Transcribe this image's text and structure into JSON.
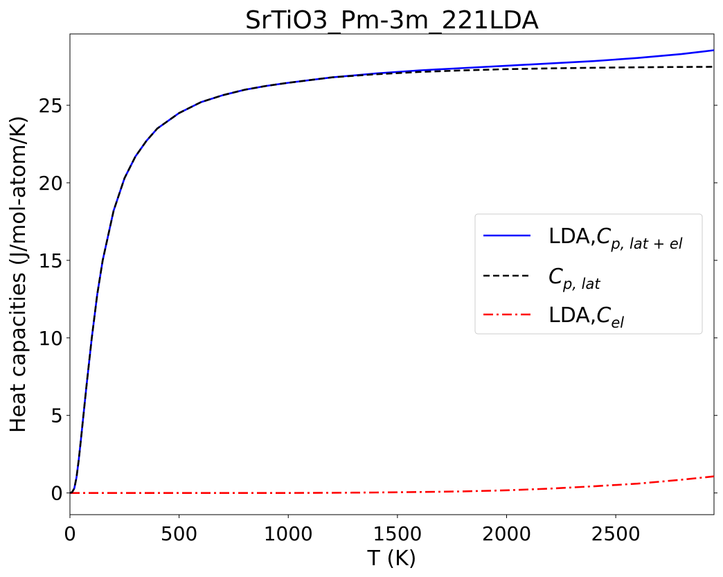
{
  "chart_data": {
    "type": "line",
    "title": "SrTiO3_Pm-3m_221LDA",
    "xlabel": "T (K)",
    "ylabel": "Heat capacities (J/mol-atom/K)",
    "xlim": [
      0,
      2950
    ],
    "ylim": [
      -1.4,
      29.6
    ],
    "xticks": [
      0,
      500,
      1000,
      1500,
      2000,
      2500
    ],
    "yticks": [
      0,
      5,
      10,
      15,
      20,
      25
    ],
    "grid": false,
    "legend_position": "center-right",
    "series": [
      {
        "name": "LDA,C_{p,lat+el}",
        "legend_prefix": "LDA,",
        "legend_symbol": "C",
        "legend_subscript": "p, lat + el",
        "color": "#0000ff",
        "style": "solid",
        "x": [
          0,
          10,
          20,
          30,
          40,
          50,
          75,
          100,
          125,
          150,
          200,
          250,
          300,
          350,
          400,
          500,
          600,
          700,
          800,
          900,
          1000,
          1200,
          1400,
          1600,
          1800,
          2000,
          2200,
          2400,
          2600,
          2800,
          2950
        ],
        "y": [
          0,
          0.05,
          0.3,
          1.0,
          2.1,
          3.4,
          6.8,
          10.0,
          12.8,
          15.0,
          18.2,
          20.3,
          21.7,
          22.7,
          23.5,
          24.5,
          25.2,
          25.65,
          26.0,
          26.25,
          26.45,
          26.8,
          27.05,
          27.25,
          27.4,
          27.55,
          27.7,
          27.85,
          28.05,
          28.3,
          28.55
        ]
      },
      {
        "name": "C_{p,lat}",
        "legend_prefix": "",
        "legend_symbol": "C",
        "legend_subscript": "p, lat",
        "color": "#000000",
        "style": "dashed",
        "x": [
          0,
          10,
          20,
          30,
          40,
          50,
          75,
          100,
          125,
          150,
          200,
          250,
          300,
          350,
          400,
          500,
          600,
          700,
          800,
          900,
          1000,
          1200,
          1400,
          1600,
          1800,
          2000,
          2200,
          2400,
          2600,
          2800,
          2950
        ],
        "y": [
          0,
          0.05,
          0.3,
          1.0,
          2.1,
          3.4,
          6.8,
          10.0,
          12.8,
          15.0,
          18.2,
          20.3,
          21.7,
          22.7,
          23.5,
          24.5,
          25.2,
          25.65,
          26.0,
          26.25,
          26.45,
          26.8,
          27.0,
          27.15,
          27.25,
          27.33,
          27.38,
          27.42,
          27.45,
          27.47,
          27.48
        ]
      },
      {
        "name": "LDA,C_{el}",
        "legend_prefix": "LDA,",
        "legend_symbol": "C",
        "legend_subscript": "el",
        "color": "#ff0000",
        "style": "dashdot",
        "x": [
          0,
          500,
          1000,
          1200,
          1400,
          1600,
          1800,
          2000,
          2200,
          2400,
          2600,
          2800,
          2950
        ],
        "y": [
          0,
          0,
          0,
          0.01,
          0.03,
          0.06,
          0.1,
          0.17,
          0.28,
          0.43,
          0.6,
          0.85,
          1.07
        ]
      }
    ]
  }
}
